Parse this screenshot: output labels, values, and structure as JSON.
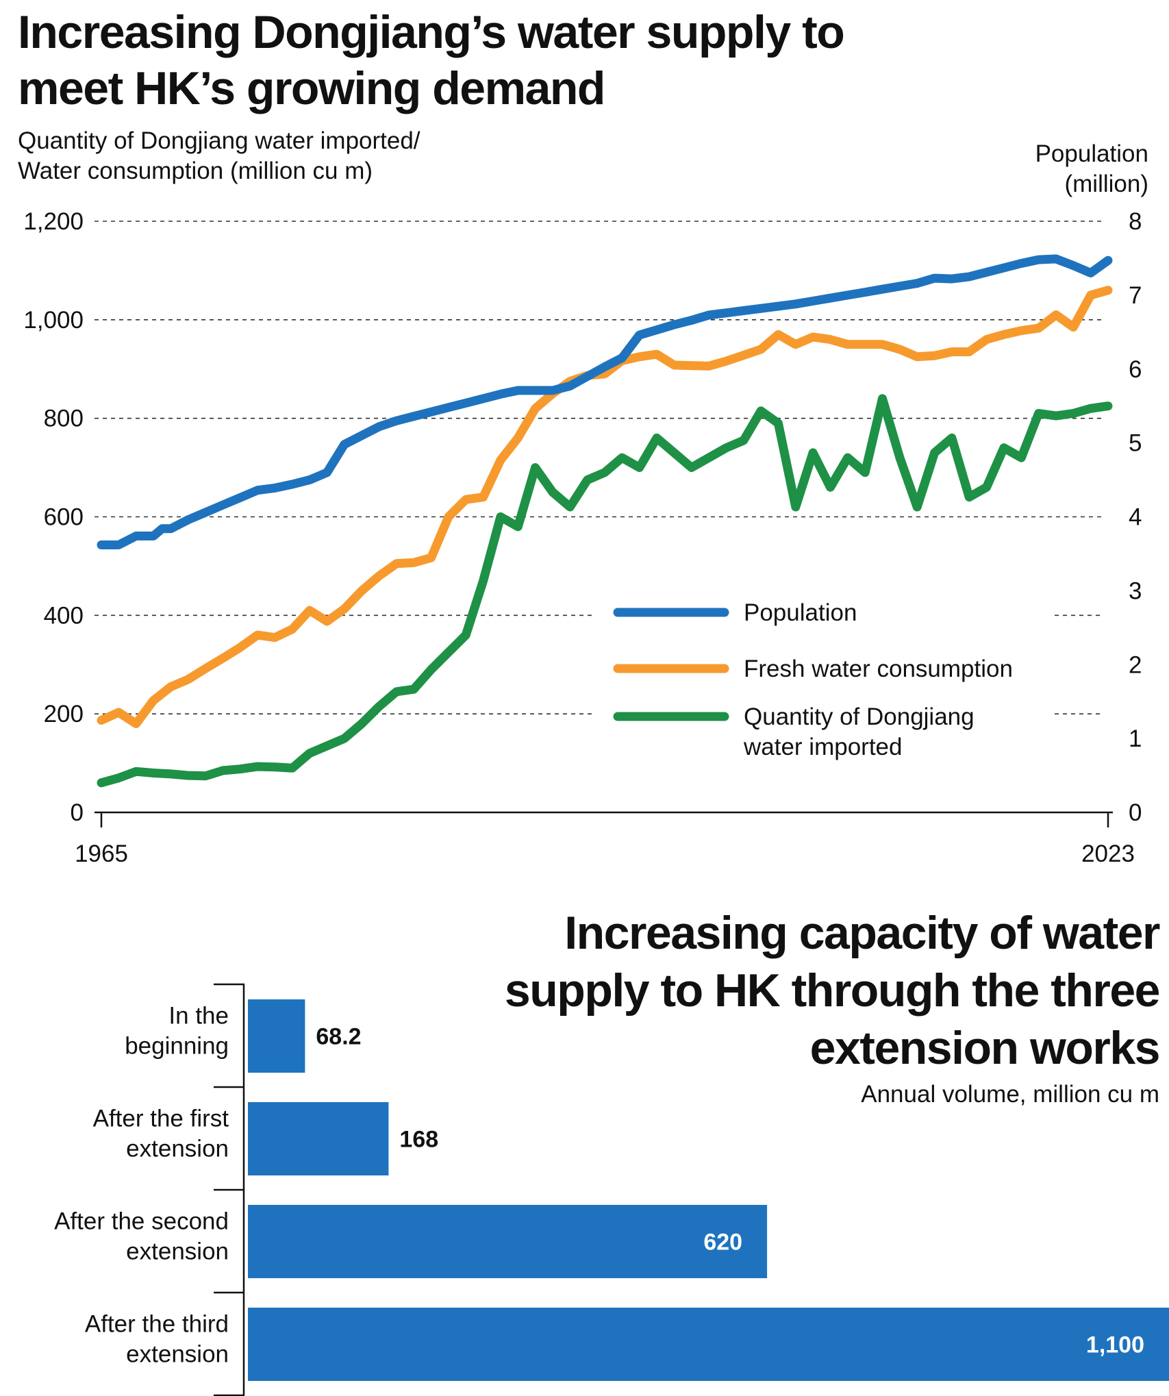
{
  "chart_data": [
    {
      "type": "line",
      "title": "Increasing Dongjiang’s water supply to meet HK’s growing demand",
      "ylabel_lines": [
        "Quantity of Dongjiang water imported/",
        "Water consumption (million cu m)"
      ],
      "y2label_lines": [
        "Population",
        "(million)"
      ],
      "x_tick_labels": [
        "1965",
        "2023"
      ],
      "xlim": [
        1965,
        2023
      ],
      "ylim": [
        0,
        1200
      ],
      "y2lim": [
        0,
        8
      ],
      "y_ticks": [
        "0",
        "200",
        "400",
        "600",
        "800",
        "1,000",
        "1,200"
      ],
      "y2_ticks": [
        "0",
        "1",
        "2",
        "3",
        "4",
        "5",
        "6",
        "7",
        "8"
      ],
      "grid": "horizontal dashed",
      "legend_position": "right, inside plot",
      "series": [
        {
          "name": "Population",
          "axis": "right",
          "color": "#1f73be",
          "x": [
            1965,
            1966,
            1967,
            1968,
            1968.5,
            1969,
            1970,
            1971,
            1972,
            1973,
            1974,
            1975,
            1976,
            1977,
            1978,
            1979,
            1980,
            1981,
            1982,
            1983,
            1984,
            1985,
            1986,
            1987,
            1988,
            1989,
            1990,
            1991,
            1992,
            1993,
            1994,
            1995,
            1996,
            1997,
            1998,
            1999,
            2000,
            2001,
            2002,
            2003,
            2004,
            2005,
            2006,
            2007,
            2008,
            2009,
            2010,
            2011,
            2012,
            2013,
            2014,
            2015,
            2016,
            2017,
            2018,
            2019,
            2020,
            2021,
            2022,
            2023
          ],
          "y": [
            3.62,
            3.62,
            3.74,
            3.74,
            3.84,
            3.84,
            3.96,
            4.06,
            4.16,
            4.26,
            4.36,
            4.39,
            4.44,
            4.5,
            4.6,
            4.98,
            5.1,
            5.22,
            5.3,
            5.36,
            5.42,
            5.48,
            5.54,
            5.6,
            5.66,
            5.71,
            5.71,
            5.71,
            5.77,
            5.9,
            6.03,
            6.15,
            6.46,
            6.53,
            6.6,
            6.66,
            6.73,
            6.76,
            6.79,
            6.82,
            6.85,
            6.88,
            6.92,
            6.96,
            7.0,
            7.04,
            7.08,
            7.12,
            7.16,
            7.23,
            7.22,
            7.25,
            7.31,
            7.37,
            7.43,
            7.48,
            7.49,
            7.4,
            7.3,
            7.47
          ]
        },
        {
          "name": "Fresh water consumption",
          "axis": "left",
          "color": "#f79a2e",
          "x": [
            1965,
            1966,
            1967,
            1968,
            1969,
            1970,
            1971,
            1972,
            1973,
            1974,
            1975,
            1976,
            1977,
            1978,
            1979,
            1980,
            1981,
            1982,
            1983,
            1984,
            1985,
            1986,
            1987,
            1988,
            1989,
            1990,
            1991,
            1992,
            1993,
            1994,
            1995,
            1996,
            1997,
            1998,
            1999,
            2000,
            2001,
            2002,
            2003,
            2004,
            2005,
            2006,
            2007,
            2008,
            2009,
            2010,
            2011,
            2012,
            2013,
            2014,
            2015,
            2016,
            2017,
            2018,
            2019,
            2020,
            2021,
            2022,
            2023
          ],
          "y": [
            187,
            203,
            180,
            227,
            255,
            270,
            292,
            313,
            335,
            360,
            355,
            372,
            410,
            388,
            413,
            450,
            480,
            505,
            507,
            517,
            600,
            635,
            640,
            715,
            760,
            820,
            850,
            875,
            887,
            890,
            917,
            925,
            930,
            908,
            907,
            906,
            916,
            928,
            940,
            970,
            950,
            965,
            960,
            950,
            950,
            950,
            940,
            925,
            927,
            935,
            935,
            960,
            970,
            978,
            983,
            1010,
            985,
            1050,
            1060
          ]
        },
        {
          "name": "Quantity of Dongjiang water imported",
          "axis": "left",
          "color": "#1e9146",
          "x": [
            1965,
            1966,
            1967,
            1968,
            1969,
            1970,
            1971,
            1972,
            1973,
            1974,
            1975,
            1976,
            1977,
            1978,
            1979,
            1980,
            1981,
            1982,
            1983,
            1984,
            1985,
            1986,
            1987,
            1988,
            1989,
            1990,
            1991,
            1992,
            1993,
            1994,
            1995,
            1996,
            1997,
            1998,
            1999,
            2000,
            2001,
            2002,
            2003,
            2004,
            2005,
            2006,
            2007,
            2008,
            2009,
            2010,
            2011,
            2012,
            2013,
            2014,
            2015,
            2016,
            2017,
            2018,
            2019,
            2020,
            2021,
            2022,
            2023
          ],
          "y": [
            60,
            70,
            83,
            80,
            78,
            75,
            74,
            85,
            88,
            93,
            92,
            90,
            120,
            135,
            150,
            180,
            215,
            245,
            250,
            290,
            325,
            360,
            470,
            600,
            580,
            700,
            650,
            620,
            675,
            690,
            720,
            700,
            760,
            730,
            700,
            720,
            740,
            755,
            815,
            790,
            620,
            730,
            660,
            720,
            690,
            840,
            720,
            620,
            730,
            760,
            640,
            660,
            740,
            720,
            810,
            805,
            810,
            820,
            825
          ]
        }
      ]
    },
    {
      "type": "bar",
      "orientation": "horizontal",
      "title": "Increasing capacity of water supply to HK through the three extension works",
      "subtitle": "Annual volume, million cu m",
      "color": "#1f73be",
      "categories": [
        [
          "In the",
          "beginning"
        ],
        [
          "After the first",
          "extension"
        ],
        [
          "After the second",
          "extension"
        ],
        [
          "After the third",
          "extension"
        ]
      ],
      "values": [
        68.2,
        168,
        620,
        1100
      ],
      "value_labels": [
        "68.2",
        "168",
        "620",
        "1,100"
      ],
      "xlim": [
        0,
        1100
      ]
    }
  ]
}
